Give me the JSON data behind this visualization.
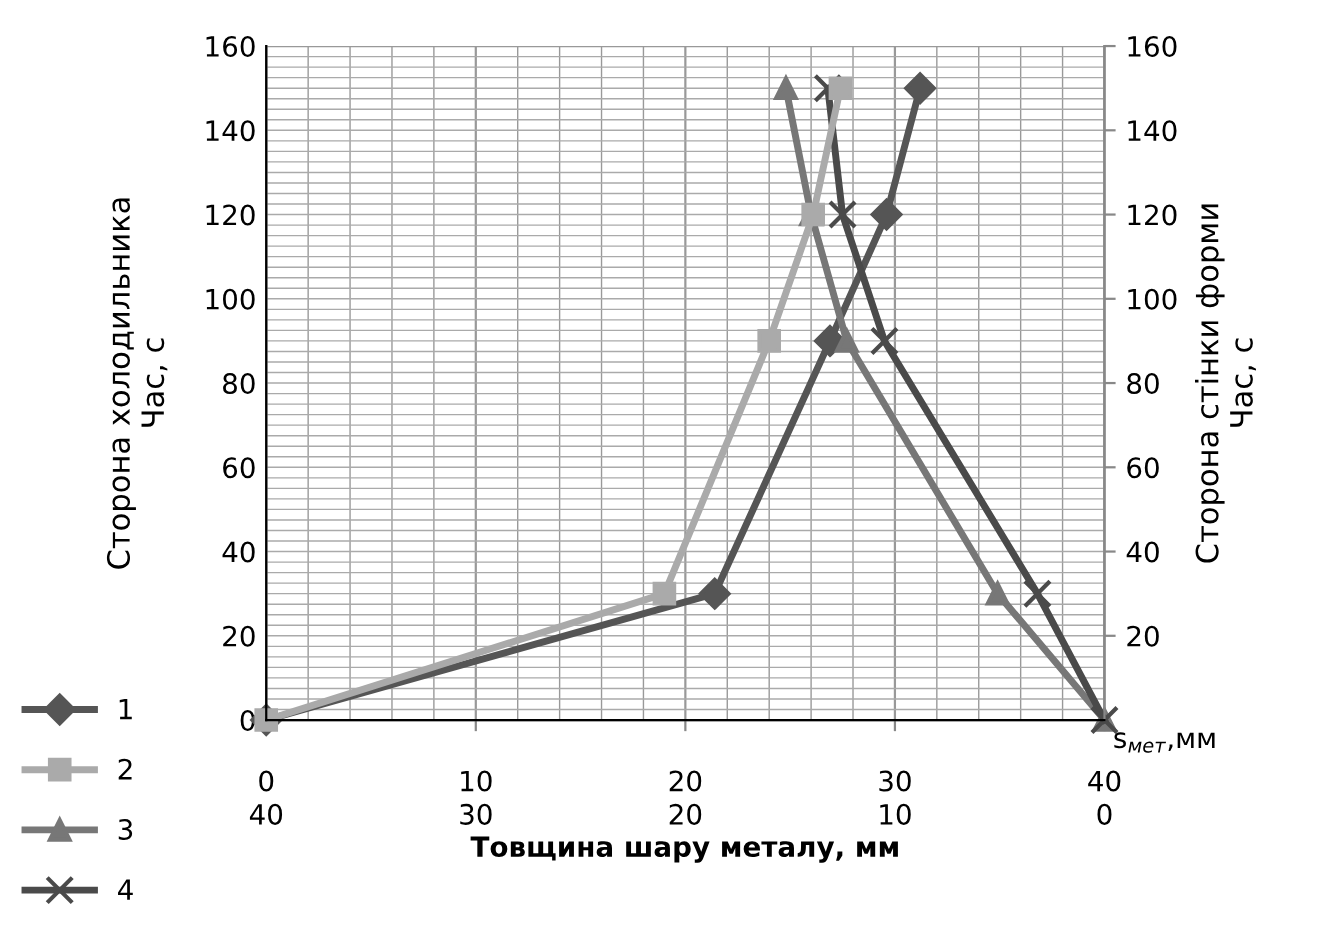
{
  "chart_data": {
    "type": "line",
    "xlabel": "Товщина шару металу, мм",
    "ylabel": "Сторона холодильника\nЧас, с",
    "y2label": "Сторона стінки форми\nЧас, с",
    "annotations": [
      "s$_{мет}$,мм"
    ],
    "xlim": [
      0,
      40
    ],
    "xticks": [
      0,
      10,
      20,
      30,
      40
    ],
    "x2lim": [
      40,
      0
    ],
    "x2ticks": [
      40,
      30,
      20,
      10,
      0
    ],
    "ylim": [
      0,
      160
    ],
    "yticks": [
      0,
      20,
      40,
      60,
      80,
      100,
      120,
      140,
      160
    ],
    "y2lim": [
      0,
      160
    ],
    "y2ticks": [
      20,
      40,
      60,
      80,
      100,
      120,
      140,
      160
    ],
    "grid": true,
    "legend": "bottom left",
    "line_style": "solid",
    "series": [
      {
        "name": "1",
        "color": "#555555",
        "marker": "diamond",
        "x": [
          0,
          21.4,
          26.9,
          29.6,
          31.2
        ],
        "values": [
          0,
          30,
          90,
          120,
          150
        ]
      },
      {
        "name": "2",
        "color": "#aaaaaa",
        "marker": "square",
        "x": [
          0,
          19.0,
          24.0,
          26.1,
          27.4
        ],
        "values": [
          0,
          30,
          90,
          120,
          150
        ]
      },
      {
        "name": "3",
        "color": "#777777",
        "marker": "triangle",
        "x": [
          40,
          34.9,
          27.7,
          26.0,
          24.8
        ],
        "values": [
          0,
          30,
          90,
          120,
          150
        ]
      },
      {
        "name": "4",
        "color": "#4a4a4a",
        "marker": "cross",
        "x": [
          40,
          36.8,
          29.5,
          27.5,
          26.8
        ],
        "values": [
          0,
          30,
          90,
          120,
          150
        ]
      }
    ]
  }
}
